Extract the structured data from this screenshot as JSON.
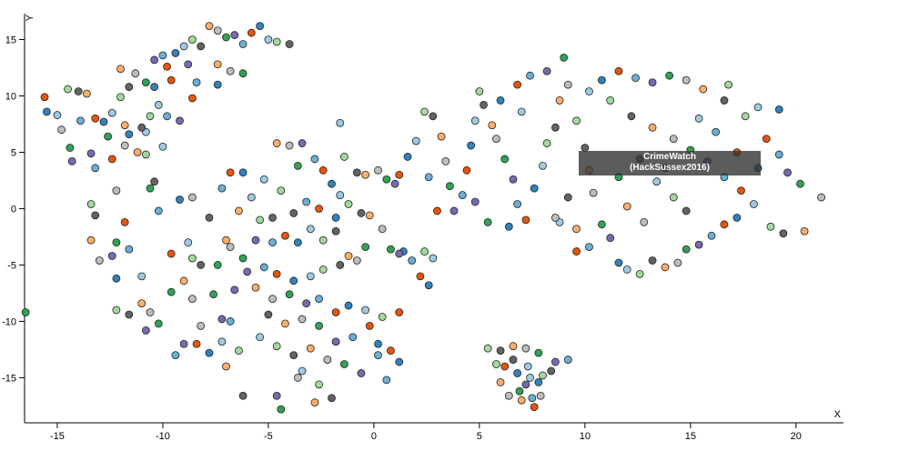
{
  "chart_data": {
    "type": "scatter",
    "x_label": "X",
    "y_label": "Y",
    "annotation": [
      "CrimeWatch",
      "(HackSussex2016)"
    ],
    "xlim": [
      -16.55,
      22.25
    ],
    "ylim": [
      -19,
      17.3
    ],
    "xticks": [
      -15,
      -10,
      -5,
      0,
      5,
      10,
      15,
      20
    ],
    "yticks": [
      -15,
      -10,
      -5,
      0,
      5,
      10,
      15
    ],
    "series": [
      {
        "color": "#e6550d",
        "x": [
          -15.6,
          -13.2,
          -9.8,
          -5.8,
          -9.6,
          -12.4,
          -8.6,
          -11.8,
          -9.6,
          -8.4,
          -6.8,
          -2.4,
          2.2,
          -4.2,
          -4.6,
          -1.8,
          -0.2,
          0.8,
          1.2,
          -2.6,
          1.2,
          4.4,
          7.2,
          6.8,
          9.6,
          16.6,
          18.6,
          11.6,
          17.4,
          17.2,
          3.0,
          6.2,
          7.6
        ],
        "values": [
          9.9,
          8.0,
          12.6,
          15.6,
          11.4,
          4.4,
          9.8,
          -1.2,
          -4.0,
          -12.0,
          3.2,
          3.4,
          -6.0,
          -2.4,
          -5.8,
          -9.2,
          -10.4,
          -12.6,
          -9.2,
          0.0,
          3.0,
          3.4,
          -1.0,
          11.0,
          -3.8,
          -1.4,
          6.2,
          12.2,
          1.6,
          5.0,
          -0.2,
          -14.0,
          -17.6
        ]
      },
      {
        "color": "#3182bd",
        "x": [
          -15.5,
          -12.8,
          -9.4,
          -5.4,
          -10.4,
          -11.6,
          -7.4,
          -12.2,
          -9.2,
          -7.8,
          -6.2,
          -2.0,
          2.6,
          -3.6,
          -3.8,
          -1.2,
          0.2,
          1.2,
          1.4,
          -1.8,
          1.6,
          4.6,
          7.6,
          6.0,
          11.6,
          17.2,
          19.2,
          10.8,
          12.6,
          18.2,
          6.4,
          6.8,
          7.8
        ],
        "values": [
          8.6,
          7.7,
          13.8,
          16.2,
          10.8,
          6.6,
          11.0,
          -6.2,
          0.8,
          -12.8,
          3.2,
          2.2,
          -6.8,
          -3.0,
          -6.4,
          -8.6,
          -12.0,
          -13.6,
          -3.8,
          -0.8,
          4.6,
          5.6,
          1.8,
          9.6,
          -4.8,
          -0.8,
          8.8,
          11.4,
          4.4,
          3.6,
          -1.6,
          -14.6,
          -15.4
        ]
      },
      {
        "color": "#9ecae1",
        "x": [
          -15.0,
          -12.4,
          -9.0,
          -5.0,
          -10.2,
          -10.8,
          -10.0,
          -11.0,
          -8.8,
          -7.2,
          -5.8,
          -1.6,
          2.8,
          -3.0,
          -3.0,
          -0.4,
          -5.4,
          -3.4,
          -1.6,
          -5.2,
          2.0,
          4.8,
          8.0,
          7.0,
          12.0,
          18.0,
          18.2,
          10.2,
          13.4,
          15.4,
          8.8,
          7.4,
          7.3
        ],
        "values": [
          8.3,
          8.5,
          14.4,
          15.0,
          9.2,
          6.8,
          5.5,
          -6.0,
          -3.0,
          -11.8,
          1.0,
          1.2,
          -4.4,
          -1.8,
          -6.0,
          -9.0,
          -11.4,
          -14.4,
          7.6,
          2.6,
          6.0,
          7.8,
          3.8,
          8.6,
          -5.4,
          0.4,
          9.0,
          10.4,
          2.4,
          8.0,
          -1.2,
          -15.0,
          -14.0
        ]
      },
      {
        "color": "#a1d99b",
        "x": [
          -14.5,
          -12.0,
          -8.6,
          -4.6,
          -10.6,
          -10.8,
          -13.4,
          -12.2,
          -8.6,
          -6.4,
          -5.4,
          -1.2,
          2.4,
          -2.4,
          -2.4,
          0.4,
          -4.6,
          -2.6,
          -1.4,
          -4.4,
          2.4,
          5.0,
          8.2,
          9.6,
          12.6,
          18.8,
          17.6,
          11.2,
          14.2,
          16.8,
          5.4,
          8.0,
          5.8
        ],
        "values": [
          10.6,
          9.9,
          15.0,
          14.8,
          8.2,
          4.8,
          0.4,
          -9.0,
          -4.4,
          -12.6,
          -1.0,
          0.4,
          -3.8,
          -2.8,
          -5.4,
          -9.6,
          -12.2,
          -15.6,
          4.6,
          1.6,
          8.6,
          10.4,
          5.8,
          7.8,
          -5.8,
          -1.6,
          8.2,
          9.6,
          1.0,
          11.0,
          -12.4,
          -14.8,
          -13.8
        ]
      },
      {
        "color": "#636363",
        "x": [
          -14.0,
          -11.6,
          -8.2,
          -4.0,
          -11.0,
          -10.4,
          -13.2,
          -11.6,
          -8.2,
          -6.2,
          -4.8,
          -0.6,
          -7.8,
          -1.8,
          -1.6,
          -5.0,
          -3.8,
          -2.0,
          -0.8,
          -3.8,
          2.8,
          5.2,
          8.6,
          10.0,
          13.2,
          19.4,
          16.6,
          12.2,
          14.8,
          9.2,
          6.0,
          8.4,
          6.6
        ],
        "values": [
          10.4,
          10.8,
          14.4,
          14.6,
          7.2,
          2.4,
          -0.6,
          -9.4,
          -5.0,
          -16.6,
          -0.8,
          -0.4,
          -0.8,
          -2.0,
          -5.0,
          -9.4,
          -13.0,
          -16.8,
          3.2,
          -0.4,
          8.2,
          9.2,
          7.2,
          5.4,
          -4.6,
          -2.2,
          9.6,
          8.2,
          -0.2,
          1.0,
          -12.6,
          -14.4,
          -13.4
        ]
      },
      {
        "color": "#fdae6b",
        "x": [
          -13.6,
          -12.0,
          -7.8,
          -7.4,
          -11.8,
          -11.2,
          -13.4,
          -11.0,
          -9.0,
          -7.0,
          -4.6,
          -0.2,
          -7.0,
          -1.2,
          -5.6,
          -4.2,
          -3.0,
          -2.8,
          -0.4,
          -6.4,
          3.2,
          5.6,
          8.8,
          10.2,
          13.8,
          20.4,
          15.6,
          13.2,
          12.0,
          9.6,
          6.6,
          6.0,
          7.0
        ],
        "values": [
          10.2,
          12.4,
          16.2,
          12.8,
          7.4,
          5.0,
          -2.8,
          -8.4,
          -6.4,
          -14.0,
          5.8,
          -0.6,
          -2.8,
          -4.2,
          -7.0,
          -10.2,
          -12.4,
          -17.2,
          3.0,
          -0.2,
          6.4,
          7.4,
          9.6,
          3.4,
          -5.2,
          -2.0,
          10.6,
          7.2,
          0.2,
          -1.8,
          -12.2,
          -15.4,
          -17.0
        ]
      },
      {
        "color": "#bdbdbd",
        "x": [
          -14.8,
          -11.3,
          -7.4,
          -6.8,
          -11.8,
          -12.2,
          -13.0,
          -10.6,
          -8.6,
          -8.2,
          -4.0,
          0.4,
          -6.8,
          -0.8,
          -4.8,
          -3.4,
          -2.2,
          -3.6,
          0.2,
          -8.6,
          3.4,
          5.8,
          9.2,
          10.4,
          14.4,
          21.2,
          14.8,
          14.2,
          12.8,
          8.6,
          7.2,
          6.4,
          7.9
        ],
        "values": [
          7.0,
          12.0,
          15.8,
          12.2,
          5.6,
          1.6,
          -4.6,
          -9.2,
          -8.0,
          -10.4,
          5.6,
          -1.8,
          -3.4,
          -4.6,
          -8.0,
          -9.8,
          -13.4,
          -15.0,
          3.4,
          1.0,
          4.2,
          6.2,
          11.0,
          1.4,
          -4.8,
          1.0,
          11.4,
          6.2,
          -1.2,
          -0.8,
          -12.4,
          -16.6,
          -16.6
        ]
      },
      {
        "color": "#31a354",
        "x": [
          -14.4,
          -10.8,
          -7.0,
          -6.2,
          -12.6,
          -10.6,
          -12.2,
          -10.2,
          -9.6,
          -7.6,
          -3.6,
          0.8,
          -6.2,
          -0.4,
          -4.0,
          -2.6,
          -1.4,
          -4.4,
          0.6,
          -7.4,
          3.6,
          6.2,
          9.0,
          10.8,
          14.8,
          20.2,
          14.0,
          15.0,
          11.6,
          5.4,
          7.8,
          6.9,
          -16.5
        ],
        "values": [
          5.4,
          11.2,
          15.2,
          12.0,
          6.4,
          1.8,
          -3.0,
          -10.2,
          -7.4,
          -7.6,
          3.8,
          -3.6,
          -4.4,
          -3.4,
          -7.6,
          -10.4,
          -13.8,
          -17.8,
          2.6,
          -5.0,
          2.0,
          4.4,
          13.4,
          -1.4,
          -3.6,
          2.2,
          11.8,
          5.2,
          2.8,
          -1.2,
          -12.8,
          -16.2,
          -9.2
        ]
      },
      {
        "color": "#756bb1",
        "x": [
          -14.3,
          -10.4,
          -6.6,
          -8.8,
          -13.4,
          -9.2,
          -12.4,
          -10.8,
          -9.0,
          -7.2,
          -3.4,
          1.2,
          -5.6,
          -6.0,
          -3.2,
          -1.8,
          -0.6,
          -4.6,
          1.0,
          -6.6,
          3.8,
          6.6,
          8.2,
          11.2,
          15.4,
          19.6,
          13.2,
          15.8,
          13.8,
          4.8,
          8.6,
          7.2
        ],
        "values": [
          4.2,
          13.2,
          15.4,
          12.8,
          4.9,
          7.8,
          -4.2,
          -10.8,
          -12.0,
          -9.8,
          5.8,
          -4.0,
          -2.8,
          -5.6,
          -8.4,
          -11.8,
          -14.6,
          -16.6,
          2.2,
          -7.2,
          -0.2,
          2.6,
          12.2,
          -2.6,
          -3.2,
          3.2,
          11.2,
          4.2,
          3.6,
          0.6,
          -13.6,
          -15.6
        ]
      },
      {
        "color": "#6baed6",
        "x": [
          -13.9,
          -10.0,
          -6.2,
          -8.4,
          -13.2,
          -9.8,
          -11.6,
          -10.2,
          -9.4,
          -7.2,
          -2.8,
          1.8,
          -4.8,
          -5.2,
          -2.6,
          -1.0,
          0.2,
          0.6,
          -3.2,
          -6.8,
          4.2,
          6.8,
          7.4,
          10.2,
          16.0,
          19.2,
          12.4,
          16.6,
          16.2,
          2.6,
          9.2,
          7.5
        ],
        "values": [
          7.8,
          13.6,
          14.6,
          11.2,
          3.6,
          8.2,
          -3.6,
          -0.2,
          -13.0,
          1.8,
          4.4,
          -4.6,
          -3.0,
          -5.2,
          -8.0,
          -11.4,
          -13.0,
          -15.2,
          0.6,
          -10.0,
          1.2,
          0.4,
          11.8,
          -3.4,
          -2.4,
          4.8,
          11.6,
          2.8,
          6.8,
          2.8,
          -13.4,
          -16.8
        ]
      }
    ]
  }
}
